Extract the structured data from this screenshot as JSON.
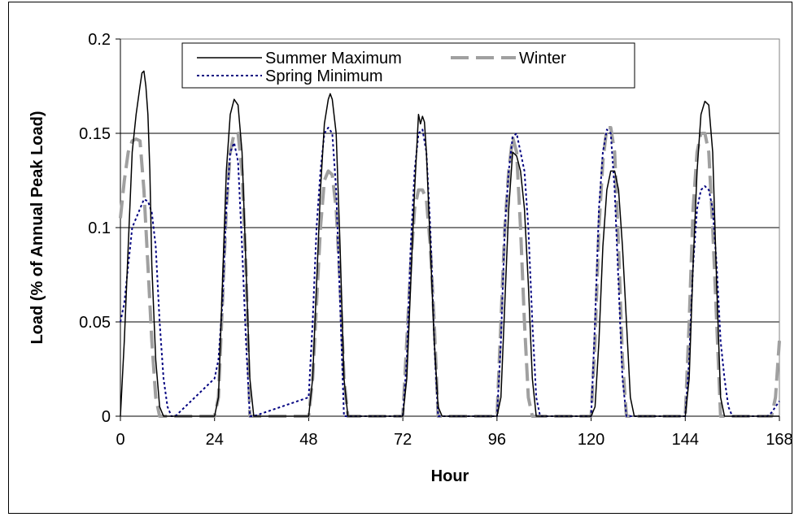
{
  "chart_data": {
    "type": "line",
    "title": "",
    "xlabel": "Hour",
    "ylabel": "Load (% of Annual Peak Load)",
    "xlim": [
      0,
      168
    ],
    "ylim": [
      0,
      0.2
    ],
    "x_ticks": [
      "0",
      "24",
      "48",
      "72",
      "96",
      "120",
      "144",
      "168"
    ],
    "y_ticks": [
      "0",
      "0.05",
      "0.1",
      "0.15",
      "0.2"
    ],
    "grid": "horizontal",
    "legend_position": "top",
    "series": [
      {
        "name": "Summer Maximum",
        "color": "#000000",
        "style": "solid",
        "x": [
          0,
          1,
          2,
          3,
          4,
          5,
          5.5,
          6,
          6.5,
          7,
          7.5,
          8,
          9,
          10,
          11,
          24,
          25,
          26,
          27,
          28,
          29,
          30,
          31,
          32,
          33,
          34,
          48,
          49,
          50,
          51,
          52,
          53,
          53.5,
          54,
          55,
          56,
          57,
          58,
          72,
          73,
          74,
          75,
          76,
          76.5,
          77,
          77.5,
          78,
          79,
          80,
          81,
          82,
          96,
          97,
          98,
          99,
          100,
          101,
          102,
          103,
          104,
          105,
          106,
          120,
          121,
          122,
          123,
          124,
          125,
          126,
          127,
          128,
          129,
          130,
          131,
          144,
          145,
          146,
          147,
          148,
          149,
          150,
          151,
          152,
          153,
          154,
          168
        ],
        "values": [
          0,
          0.04,
          0.09,
          0.14,
          0.16,
          0.175,
          0.182,
          0.183,
          0.175,
          0.16,
          0.13,
          0.08,
          0.03,
          0.005,
          0,
          0,
          0.01,
          0.07,
          0.13,
          0.16,
          0.168,
          0.165,
          0.14,
          0.08,
          0.02,
          0,
          0,
          0.02,
          0.07,
          0.12,
          0.155,
          0.168,
          0.171,
          0.168,
          0.15,
          0.09,
          0.02,
          0,
          0,
          0.02,
          0.07,
          0.12,
          0.16,
          0.155,
          0.159,
          0.156,
          0.14,
          0.09,
          0.04,
          0.005,
          0,
          0,
          0.01,
          0.06,
          0.11,
          0.14,
          0.138,
          0.13,
          0.11,
          0.07,
          0.02,
          0,
          0,
          0.005,
          0.04,
          0.09,
          0.12,
          0.13,
          0.13,
          0.12,
          0.09,
          0.05,
          0.01,
          0,
          0,
          0.02,
          0.08,
          0.13,
          0.16,
          0.167,
          0.165,
          0.14,
          0.07,
          0.01,
          0,
          0
        ]
      },
      {
        "name": "Winter",
        "color": "#a0a0a0",
        "style": "dashed",
        "x": [
          0,
          1,
          2,
          3,
          4,
          5,
          6,
          7,
          8,
          9,
          10,
          11,
          24,
          25,
          26,
          27,
          28,
          29,
          30,
          31,
          32,
          33,
          48,
          49,
          50,
          51,
          52,
          53,
          54,
          55,
          56,
          57,
          58,
          72,
          73,
          74,
          75,
          76,
          77,
          78,
          79,
          80,
          81,
          96,
          97,
          98,
          99,
          100,
          101,
          102,
          103,
          104,
          105,
          120,
          121,
          122,
          123,
          124,
          125,
          126,
          127,
          128,
          129,
          144,
          145,
          146,
          147,
          148,
          149,
          150,
          151,
          152,
          153,
          166,
          167,
          168
        ],
        "values": [
          0.105,
          0.125,
          0.14,
          0.146,
          0.147,
          0.146,
          0.12,
          0.08,
          0.04,
          0.01,
          0,
          0,
          0,
          0.01,
          0.06,
          0.11,
          0.14,
          0.15,
          0.15,
          0.13,
          0.08,
          0,
          0,
          0.02,
          0.06,
          0.1,
          0.125,
          0.13,
          0.128,
          0.11,
          0.07,
          0.02,
          0,
          0,
          0.04,
          0.08,
          0.11,
          0.12,
          0.12,
          0.115,
          0.09,
          0.05,
          0,
          0,
          0.05,
          0.1,
          0.13,
          0.148,
          0.14,
          0.1,
          0.05,
          0.01,
          0,
          0,
          0.04,
          0.1,
          0.135,
          0.153,
          0.153,
          0.14,
          0.09,
          0.03,
          0,
          0,
          0.05,
          0.11,
          0.14,
          0.15,
          0.15,
          0.14,
          0.1,
          0.05,
          0,
          0,
          0.01,
          0.04
        ]
      },
      {
        "name": "Spring Minimum",
        "color": "#000080",
        "style": "dotted",
        "x": [
          0,
          1,
          2,
          3,
          4,
          5,
          6,
          7,
          8,
          9,
          10,
          11,
          12,
          13,
          14,
          24,
          25,
          26,
          27,
          28,
          29,
          30,
          31,
          32,
          33,
          34,
          48,
          49,
          50,
          51,
          52,
          53,
          54,
          55,
          56,
          57,
          72,
          73,
          74,
          75,
          76,
          77,
          78,
          79,
          80,
          81,
          96,
          97,
          98,
          99,
          100,
          101,
          102,
          103,
          104,
          105,
          106,
          107,
          120,
          121,
          122,
          123,
          124,
          125,
          126,
          127,
          128,
          129,
          144,
          145,
          146,
          147,
          148,
          149,
          150,
          151,
          152,
          153,
          154,
          155,
          156,
          157,
          165,
          166,
          167,
          168
        ],
        "values": [
          0.05,
          0.06,
          0.08,
          0.1,
          0.105,
          0.11,
          0.115,
          0.114,
          0.108,
          0.09,
          0.05,
          0.02,
          0.005,
          0,
          0,
          0.02,
          0.03,
          0.06,
          0.11,
          0.14,
          0.145,
          0.135,
          0.09,
          0.04,
          0,
          0,
          0.01,
          0.05,
          0.1,
          0.13,
          0.15,
          0.153,
          0.15,
          0.12,
          0.06,
          0,
          0,
          0.03,
          0.09,
          0.13,
          0.15,
          0.152,
          0.14,
          0.1,
          0.04,
          0,
          0,
          0.04,
          0.1,
          0.13,
          0.148,
          0.15,
          0.14,
          0.13,
          0.1,
          0.05,
          0.01,
          0,
          0,
          0.05,
          0.11,
          0.14,
          0.152,
          0.15,
          0.12,
          0.07,
          0.02,
          0,
          0,
          0.03,
          0.08,
          0.11,
          0.12,
          0.122,
          0.12,
          0.11,
          0.08,
          0.04,
          0.02,
          0.005,
          0,
          0,
          0,
          0.002,
          0.005,
          0.008
        ]
      }
    ]
  }
}
